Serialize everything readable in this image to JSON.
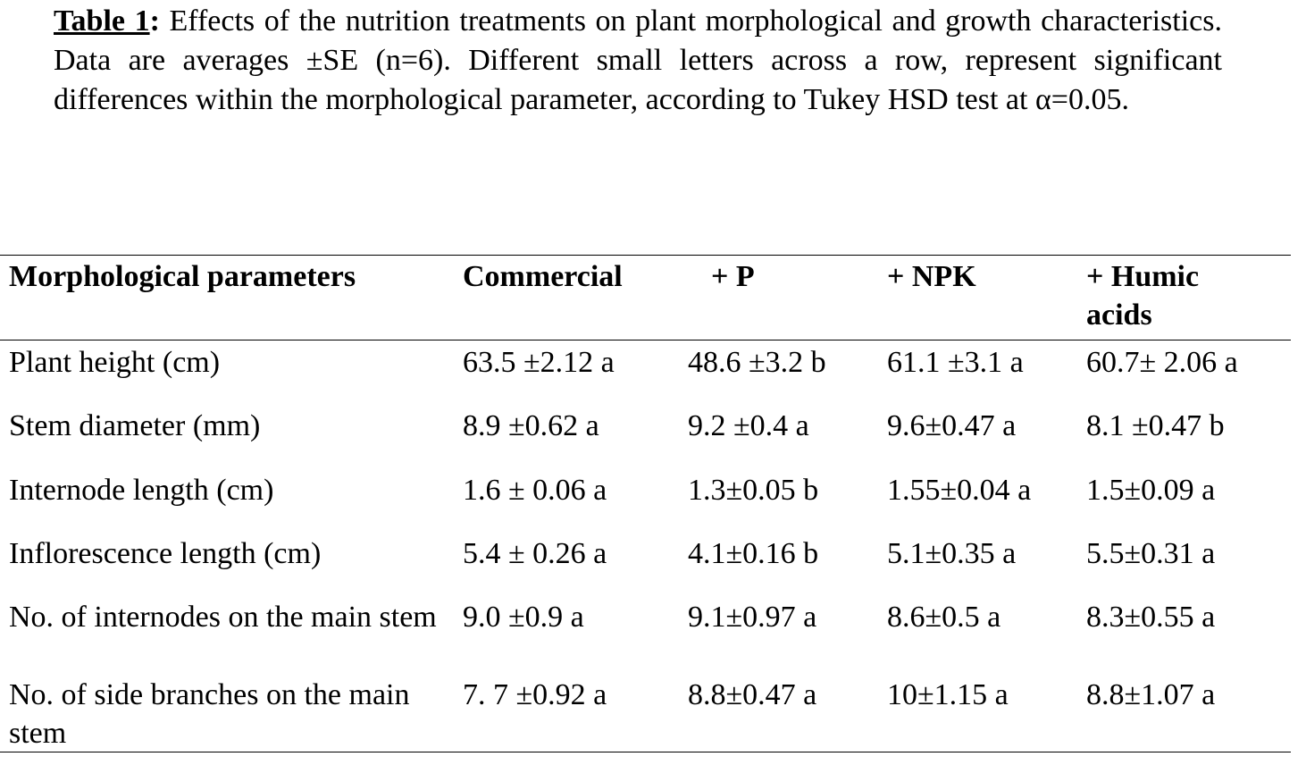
{
  "caption": {
    "label": "Table 1",
    "separator": ":",
    "text": "Effects of the nutrition treatments on plant morphological and growth characteristics. Data are averages ±SE (n=6). Different small letters across a row, represent significant differences within the morphological parameter, according to Tukey HSD test at α=0.05."
  },
  "table": {
    "header": [
      "Morphological parameters",
      "Commercial",
      "+ P",
      "+ NPK",
      "+ Humic acids"
    ],
    "rows": [
      [
        "Plant height (cm)",
        "63.5 ±2.12 a",
        "48.6 ±3.2 b",
        "61.1 ±3.1 a",
        "60.7± 2.06 a"
      ],
      [
        "Stem diameter (mm)",
        "8.9 ±0.62 a",
        "9.2 ±0.4 a",
        "9.6±0.47 a",
        "8.1 ±0.47 b"
      ],
      [
        "Internode length (cm)",
        "1.6 ± 0.06 a",
        "1.3±0.05 b",
        "1.55±0.04 a",
        "1.5±0.09 a"
      ],
      [
        "Inflorescence length (cm)",
        "5.4 ± 0.26 a",
        "4.1±0.16 b",
        "5.1±0.35 a",
        "5.5±0.31 a"
      ],
      [
        "No. of internodes on the main stem",
        "9.0 ±0.9 a",
        "9.1±0.97 a",
        "8.6±0.5 a",
        "8.3±0.55 a"
      ],
      [
        "No. of side branches on the main stem",
        "7. 7 ±0.92 a",
        "8.8±0.47 a",
        "10±1.15 a",
        "8.8±1.07 a"
      ]
    ]
  }
}
